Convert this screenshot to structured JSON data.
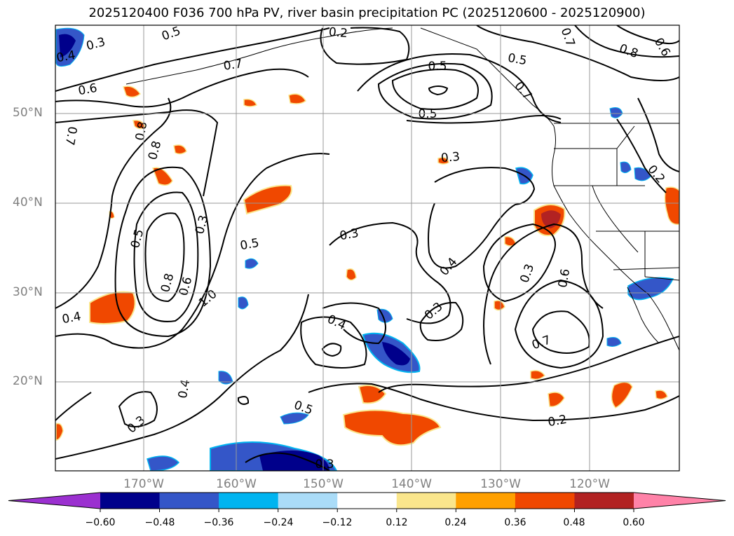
{
  "title": "2025120400 F036 700 hPa PV, river basin precipitation PC (2025120600 - 2025120900)",
  "lat_labels": [
    "50°N",
    "40°N",
    "30°N",
    "20°N"
  ],
  "lon_labels": [
    "170°W",
    "160°W",
    "150°W",
    "140°W",
    "130°W",
    "120°W"
  ],
  "colorbar": {
    "ticks": [
      "−0.60",
      "−0.48",
      "−0.36",
      "−0.24",
      "−0.12",
      "0.12",
      "0.24",
      "0.36",
      "0.48",
      "0.60"
    ],
    "colors": [
      "#9b30d0",
      "#00008b",
      "#3456c8",
      "#00b4f0",
      "#aadcf8",
      "#ffffff",
      "#fae68c",
      "#ffa000",
      "#f04800",
      "#b22222",
      "#ff82a8"
    ]
  },
  "contour_labels": [
    "0.2",
    "0.3",
    "0.4",
    "0.5",
    "0.6",
    "0.7",
    "0.8",
    "1.0"
  ],
  "contour_label_list": [
    "0.3",
    "0.4",
    "0.5",
    "0.6",
    "0.7",
    "0.8",
    "0.2",
    "0.5",
    "0.5",
    "0.7",
    "0.8",
    "0.6",
    "0.5",
    "0.7",
    "0.8",
    "0.5",
    "0.3",
    "0.8",
    "0.6",
    "1.0",
    "0.5",
    "0.4",
    "0.4",
    "0.3",
    "0.3",
    "0.4",
    "0.6",
    "0.3",
    "0.3",
    "0.4",
    "0.7",
    "0.3",
    "0.5",
    "0.3",
    "0.2",
    "0.2",
    "0.7"
  ]
}
